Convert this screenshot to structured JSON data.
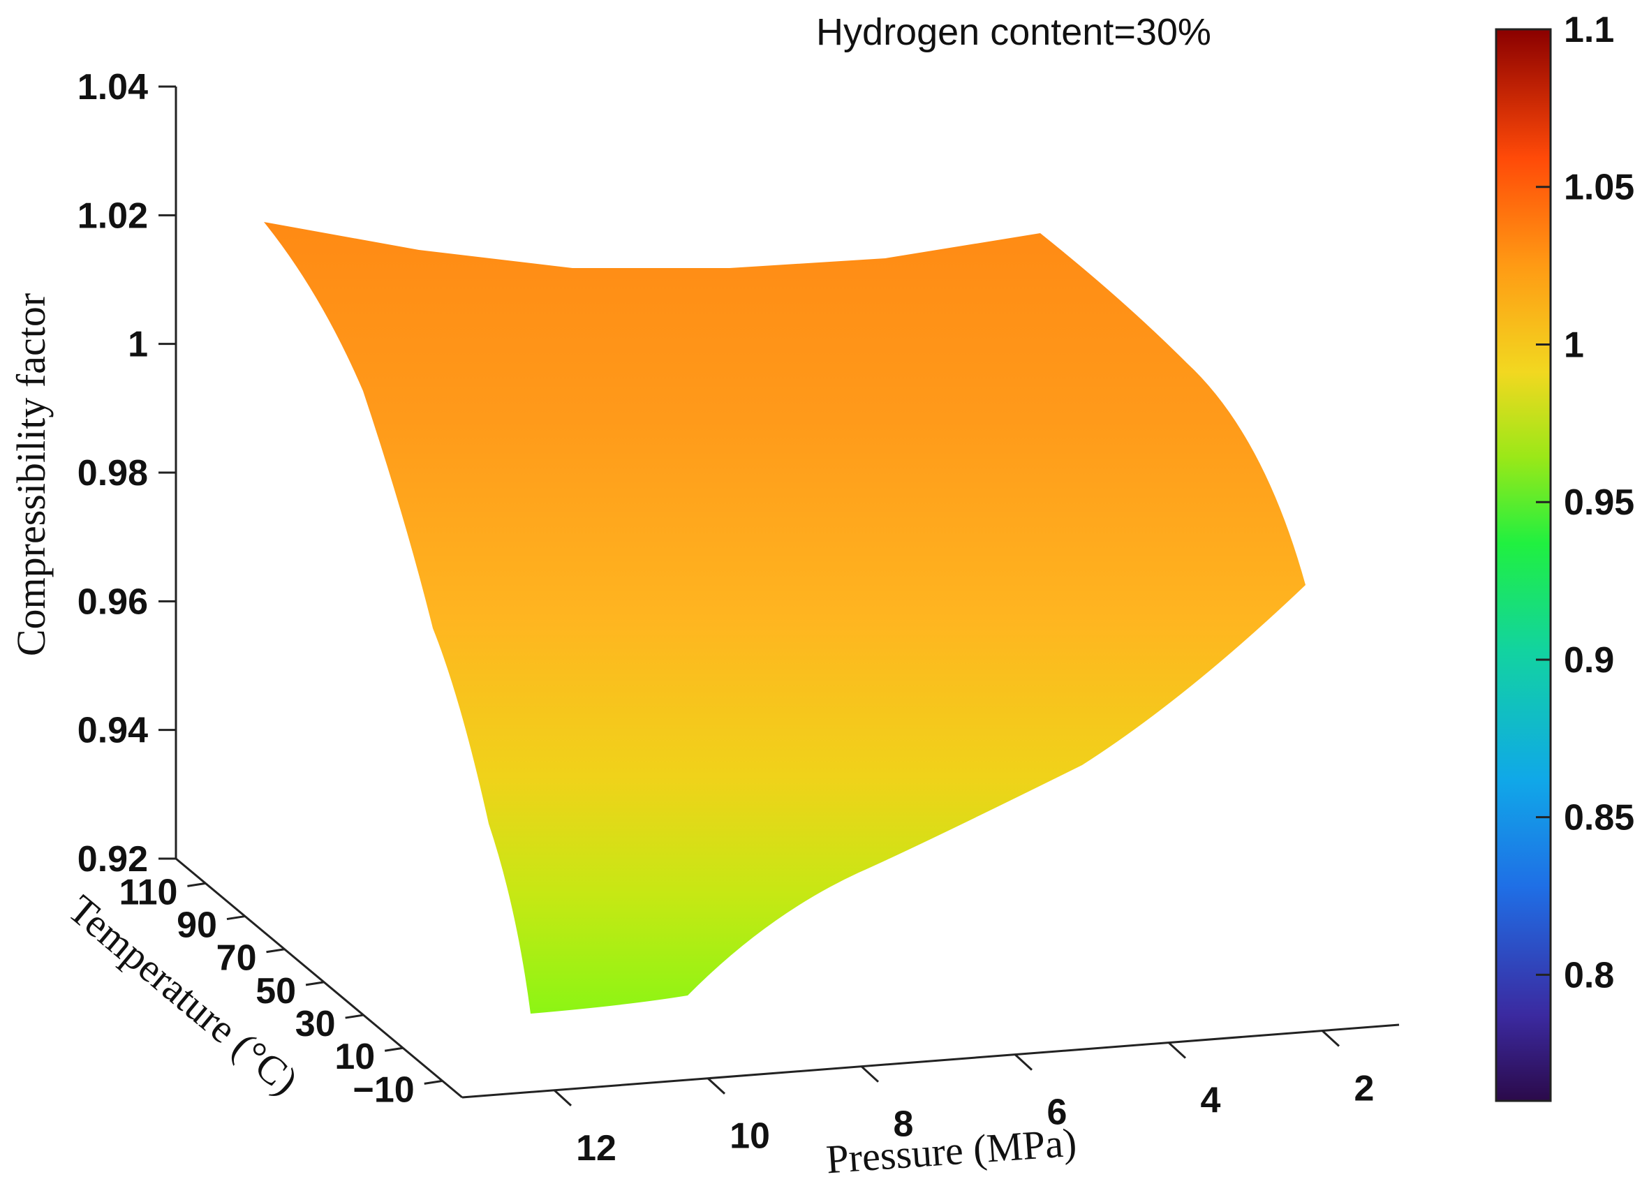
{
  "chart_data": {
    "type": "surface",
    "title": "Hydrogen content=30%",
    "xlabel": "Pressure (MPa)",
    "ylabel": "Temperature (°C)",
    "zlabel": "Compressibility factor",
    "x_ticks": [
      "12",
      "10",
      "8",
      "6",
      "4",
      "2"
    ],
    "y_ticks": [
      "110",
      "90",
      "70",
      "50",
      "30",
      "10",
      "−10"
    ],
    "z_ticks": [
      "1.04",
      "1.02",
      "1",
      "0.98",
      "0.96",
      "0.94",
      "0.92"
    ],
    "zlim": [
      0.92,
      1.04
    ],
    "colorbar": {
      "colormap": "jet",
      "range": [
        0.76,
        1.1
      ],
      "ticks": [
        "1.1",
        "1.05",
        "1",
        "0.95",
        "0.9",
        "0.85",
        "0.8"
      ]
    },
    "surface_edges": {
      "high_temperature_edge": {
        "temperature": 110,
        "pressure": [
          12,
          10,
          8,
          6,
          4,
          2
        ],
        "z": [
          1.02,
          1.018,
          1.016,
          1.016,
          1.017,
          1.019
        ]
      },
      "low_temperature_edge": {
        "temperature": -10,
        "pressure": [
          12,
          10,
          8,
          6,
          4,
          2
        ],
        "z": [
          0.937,
          0.94,
          0.948,
          0.958,
          0.97,
          0.983
        ]
      }
    },
    "grid": false
  }
}
